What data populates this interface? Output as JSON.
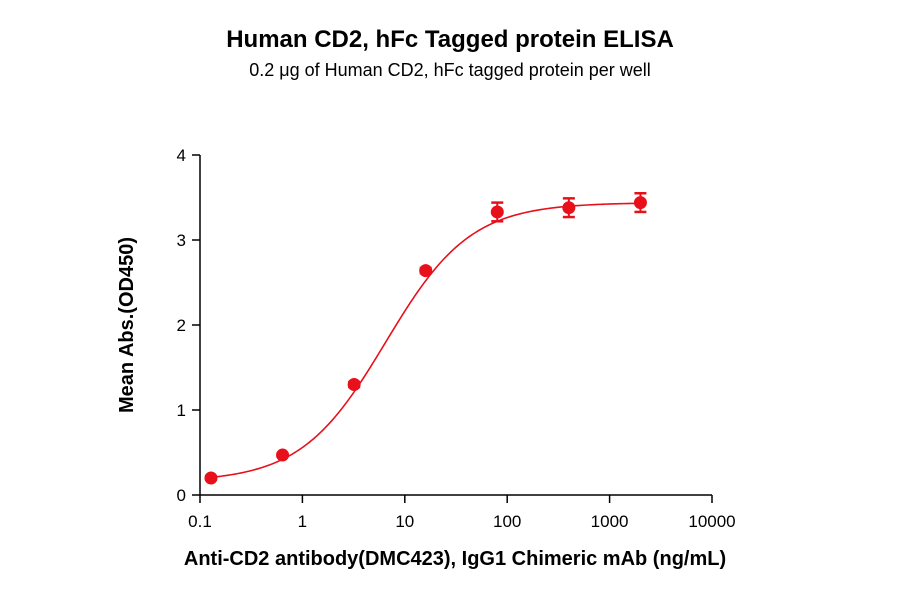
{
  "chart_data": {
    "type": "scatter",
    "title": "Human CD2, hFc Tagged protein ELISA",
    "subtitle": "0.2 μg of Human CD2, hFc tagged protein per well",
    "xlabel": "Anti-CD2 antibody(DMC423), IgG1 Chimeric mAb (ng/mL)",
    "ylabel": "Mean Abs.(OD450)",
    "x_scale": "log",
    "xlim": [
      0.1,
      10000
    ],
    "ylim": [
      0,
      4
    ],
    "x_ticks": [
      0.1,
      1,
      10,
      100,
      1000,
      10000
    ],
    "x_tick_labels": [
      "0.1",
      "1",
      "10",
      "100",
      "1000",
      "10000"
    ],
    "y_ticks": [
      0,
      1,
      2,
      3,
      4
    ],
    "y_tick_labels": [
      "0",
      "1",
      "2",
      "3",
      "4"
    ],
    "grid": false,
    "series": [
      {
        "color": "#e8101b",
        "points": [
          {
            "x": 0.128,
            "y": 0.2,
            "err": 0.02
          },
          {
            "x": 0.64,
            "y": 0.47,
            "err": 0.02
          },
          {
            "x": 3.2,
            "y": 1.3,
            "err": 0.03
          },
          {
            "x": 16,
            "y": 2.64,
            "err": 0.03
          },
          {
            "x": 80,
            "y": 3.33,
            "err": 0.11
          },
          {
            "x": 400,
            "y": 3.38,
            "err": 0.11
          },
          {
            "x": 2000,
            "y": 3.44,
            "err": 0.11
          }
        ],
        "fit": {
          "bottom": 0.155,
          "top": 3.44,
          "ec50": 6.5,
          "hill": 1.05
        }
      }
    ]
  }
}
